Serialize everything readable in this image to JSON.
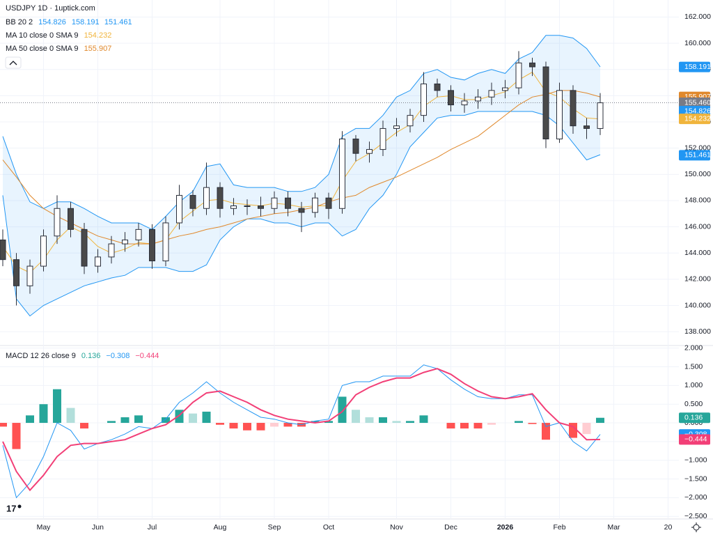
{
  "chart_data": [
    {
      "type": "candlestick",
      "title": "USDJPY 1D · 1uptick.com",
      "categories": [
        null,
        null,
        null,
        "May",
        null,
        null,
        null,
        "Jun",
        null,
        null,
        null,
        "Jul",
        null,
        null,
        null,
        null,
        "Aug",
        null,
        null,
        null,
        "Sep",
        null,
        null,
        null,
        "Oct",
        null,
        null,
        null,
        null,
        "Nov",
        null,
        null,
        null,
        "Dec",
        null,
        null,
        null,
        "2026",
        null,
        null,
        null,
        "Feb",
        null,
        null,
        null,
        "Mar",
        null,
        null,
        null,
        "20"
      ],
      "open": [
        145,
        143.5,
        141.5,
        143,
        145.3,
        147.4,
        145.8,
        143,
        143.7,
        144.7,
        145,
        145.8,
        143.4,
        146.3,
        148.4,
        147.4,
        149,
        147.4,
        147.6,
        147.6,
        147.4,
        148.2,
        147.4,
        147.1,
        148.2,
        147.4,
        152.7,
        151.6,
        151.9,
        153.5,
        153.7,
        154.5,
        156.9,
        156.4,
        155.3,
        155.6,
        155.9,
        156.4,
        156.6,
        158.5,
        158.2,
        152.7,
        156.4,
        153.7,
        153.5,
        null,
        null,
        null,
        null,
        null
      ],
      "high": [
        145.8,
        144,
        143.5,
        145.8,
        148.4,
        147.9,
        146.3,
        144.3,
        145.3,
        145.6,
        146.3,
        146.2,
        146.8,
        149.2,
        148.8,
        150.9,
        149.4,
        148.2,
        148.1,
        148.3,
        148.7,
        148.7,
        147.9,
        148.6,
        148.6,
        153.3,
        153,
        152.5,
        154.1,
        154.3,
        155,
        157.8,
        157.3,
        156.8,
        156.2,
        156.5,
        157,
        157.2,
        159.4,
        158.9,
        158.6,
        157,
        156.8,
        154.3,
        156.2,
        null,
        null,
        null,
        null,
        null
      ],
      "low": [
        143,
        140,
        140.9,
        142.6,
        144.7,
        145.2,
        142.4,
        142.5,
        143.2,
        144.1,
        144.5,
        142.8,
        143,
        145.8,
        146.8,
        146.9,
        146.7,
        146.9,
        146.9,
        146.8,
        147,
        146.8,
        145.6,
        146.7,
        146.6,
        147,
        151,
        150.9,
        151.4,
        152.9,
        153.2,
        154,
        155.9,
        154.8,
        154.7,
        155,
        155.3,
        155.8,
        156.1,
        157.5,
        152,
        152.4,
        153.1,
        152.7,
        153,
        null,
        null,
        null,
        null,
        null
      ],
      "close": [
        143.5,
        141.5,
        143,
        145.3,
        147.4,
        145.8,
        143,
        143.7,
        144.7,
        145,
        145.8,
        143.4,
        146.3,
        148.4,
        147.4,
        149,
        147.4,
        147.6,
        147.6,
        147.4,
        148.2,
        147.4,
        147.1,
        148.2,
        147.4,
        152.7,
        151.6,
        151.9,
        153.5,
        153.7,
        154.5,
        156.9,
        156.4,
        155.3,
        155.6,
        155.9,
        156.4,
        156.6,
        158.5,
        158.2,
        152.7,
        156.4,
        153.7,
        153.5,
        155.46,
        null,
        null,
        null,
        null,
        null
      ],
      "up_color": "#ffffff",
      "down_color": "#4a4a4a",
      "wick_color": "#2a2e39",
      "bands": {
        "name": "BB 20 2",
        "color": "#2196f3",
        "legend_values": [
          "154.826",
          "158.191",
          "151.461"
        ],
        "upper": [
          152.9,
          150,
          147.9,
          147.4,
          147.9,
          147.9,
          147.4,
          146.8,
          146.3,
          146.3,
          146.3,
          145.8,
          146.8,
          147.9,
          148.7,
          150.6,
          150.8,
          149.2,
          149,
          149,
          149,
          148.7,
          148.7,
          149,
          150,
          152.9,
          153.5,
          153.5,
          154.5,
          155.9,
          156.4,
          157.7,
          158,
          157.4,
          157.2,
          157.7,
          158,
          157.7,
          158.8,
          159.3,
          160.6,
          160.6,
          160.4,
          159.6,
          158.2,
          null,
          null,
          null,
          null,
          null
        ],
        "lower": [
          148.4,
          140.5,
          139.2,
          140,
          140.5,
          141,
          141.5,
          141.8,
          142.1,
          142.3,
          142.9,
          142.9,
          142.9,
          142.6,
          142.6,
          143.1,
          145,
          146,
          146.6,
          146.6,
          146.3,
          146.3,
          146,
          146.3,
          146.3,
          145.3,
          145.8,
          147.4,
          148.4,
          150,
          152.1,
          153.2,
          154.3,
          154.5,
          154.5,
          154.8,
          154.8,
          154.8,
          154.8,
          154.8,
          154.5,
          153.7,
          152.4,
          151.1,
          151.5,
          null,
          null,
          null,
          null,
          null
        ]
      },
      "series": [
        {
          "name": "MA 10 close 0 SMA 9",
          "color": "#f0b43c",
          "legend_values": [
            "154.232"
          ],
          "values": [
            144.5,
            143,
            142.5,
            143.5,
            145,
            146,
            145.5,
            144.5,
            144,
            144.3,
            144.8,
            144.7,
            145,
            146.4,
            147.2,
            148,
            148.1,
            147.8,
            147.7,
            147.6,
            147.8,
            147.7,
            147.5,
            147.6,
            147.6,
            149.5,
            151,
            151.6,
            152.4,
            153.2,
            153.8,
            155.2,
            155.9,
            156,
            155.7,
            155.7,
            156,
            156.3,
            157.2,
            157.8,
            156.3,
            155.9,
            155,
            154.3,
            154.232,
            null,
            null,
            null,
            null,
            null
          ]
        },
        {
          "name": "MA 50 close 0 SMA 9",
          "color": "#e0882b",
          "legend_values": [
            "155.907"
          ],
          "values": [
            151.1,
            149.8,
            148.4,
            147.4,
            146.8,
            146.3,
            145.8,
            145.3,
            145,
            144.7,
            144.7,
            144.7,
            145,
            145.3,
            145.5,
            145.8,
            146,
            146.3,
            146.6,
            146.8,
            147,
            147.1,
            147.3,
            147.5,
            147.9,
            148.2,
            148.4,
            149,
            149.4,
            149.8,
            150.3,
            150.8,
            151.3,
            151.9,
            152.4,
            152.9,
            153.7,
            154.5,
            155.3,
            155.9,
            156.1,
            156.4,
            156.4,
            156.2,
            155.907,
            null,
            null,
            null,
            null,
            null
          ]
        }
      ],
      "last_price": 155.46,
      "ylim": [
        137,
        163.3
      ],
      "yticks": [
        {
          "value": 138,
          "label": "138.000"
        },
        {
          "value": 140,
          "label": "140.000"
        },
        {
          "value": 142,
          "label": "142.000"
        },
        {
          "value": 144,
          "label": "144.000"
        },
        {
          "value": 146,
          "label": "146.000"
        },
        {
          "value": 148,
          "label": "148.000"
        },
        {
          "value": 150,
          "label": "150.000"
        },
        {
          "value": 152,
          "label": "152.000"
        },
        {
          "value": 154,
          "label": "154.000"
        },
        {
          "value": 156,
          "label": "156.000"
        },
        {
          "value": 158,
          "label": "158.000"
        },
        {
          "value": 160,
          "label": "160.000"
        },
        {
          "value": 162,
          "label": "162.000"
        }
      ],
      "price_tags": [
        {
          "value": 158.191,
          "label": "158.191",
          "color": "#2196f3"
        },
        {
          "value": 155.907,
          "label": "155.907",
          "color": "#e0882b"
        },
        {
          "value": 155.46,
          "label": "155.460",
          "color": "#787b86"
        },
        {
          "value": 154.826,
          "label": "154.826",
          "color": "#2196f3"
        },
        {
          "value": 154.232,
          "label": "154.232",
          "color": "#f0b43c"
        },
        {
          "value": 151.461,
          "label": "151.461",
          "color": "#2196f3"
        }
      ],
      "grid": true
    },
    {
      "type": "macd",
      "title": "MACD 12 26 close 9",
      "legend_values": [
        "0.136",
        "−0.308",
        "−0.444"
      ],
      "histogram": [
        -0.1,
        -0.7,
        0.2,
        0.5,
        0.9,
        0.4,
        -0.15,
        0,
        0.05,
        0.15,
        0.2,
        0,
        0.15,
        0.35,
        0.25,
        0.3,
        -0.05,
        -0.15,
        -0.2,
        -0.2,
        -0.1,
        -0.1,
        -0.1,
        0.05,
        0.05,
        0.7,
        0.35,
        0.15,
        0.15,
        0.05,
        0.05,
        0.2,
        0,
        -0.15,
        -0.15,
        -0.15,
        -0.05,
        0,
        0.05,
        -0.03,
        -0.45,
        0,
        -0.4,
        -0.3,
        0.136,
        null,
        null,
        null,
        null,
        null
      ],
      "colors": {
        "up_rising": "#26a69a",
        "up_falling": "#b2dfdb",
        "down_falling": "#ff5252",
        "down_rising": "#ffcdd2"
      },
      "macd": {
        "color": "#2196f3",
        "values": [
          -0.6,
          -2,
          -1.6,
          -0.9,
          0,
          -0.2,
          -0.7,
          -0.55,
          -0.45,
          -0.3,
          -0.1,
          -0.15,
          0.1,
          0.55,
          0.8,
          1.1,
          0.8,
          0.55,
          0.35,
          0.15,
          0.1,
          0,
          -0.05,
          0.05,
          0.1,
          1,
          1.1,
          1.1,
          1.25,
          1.25,
          1.25,
          1.55,
          1.45,
          1.15,
          0.9,
          0.7,
          0.65,
          0.65,
          0.75,
          0.75,
          -0.1,
          0,
          -0.5,
          -0.75,
          -0.308,
          null,
          null,
          null,
          null,
          null
        ]
      },
      "signal": {
        "color": "#f23f77",
        "values": [
          -0.5,
          -1.3,
          -1.8,
          -1.4,
          -0.9,
          -0.6,
          -0.55,
          -0.55,
          -0.5,
          -0.45,
          -0.3,
          -0.15,
          -0.05,
          0.2,
          0.55,
          0.8,
          0.85,
          0.7,
          0.55,
          0.35,
          0.2,
          0.1,
          0.05,
          0,
          0.05,
          0.3,
          0.75,
          0.95,
          1.1,
          1.2,
          1.2,
          1.35,
          1.45,
          1.3,
          1.05,
          0.85,
          0.7,
          0.65,
          0.7,
          0.78,
          0.35,
          0,
          -0.1,
          -0.45,
          -0.444,
          null,
          null,
          null,
          null,
          null
        ]
      },
      "ylim": [
        -2.57,
        2.05
      ],
      "yticks": [
        {
          "value": 2,
          "label": "2.000"
        },
        {
          "value": 1.5,
          "label": "1.500"
        },
        {
          "value": 1,
          "label": "1.000"
        },
        {
          "value": 0.5,
          "label": "0.500"
        },
        {
          "value": 0,
          "label": "0.000"
        },
        {
          "value": -0.5,
          "label": "−0.500"
        },
        {
          "value": -1,
          "label": "−1.000"
        },
        {
          "value": -1.5,
          "label": "−1.500"
        },
        {
          "value": -2,
          "label": "−2.000"
        },
        {
          "value": -2.5,
          "label": "−2.500"
        }
      ],
      "tags": [
        {
          "value": 0.136,
          "label": "0.136",
          "color": "#26a69a"
        },
        {
          "value": -0.308,
          "label": "−0.308",
          "color": "#2196f3"
        },
        {
          "value": -0.444,
          "label": "−0.444",
          "color": "#f23f77"
        }
      ]
    }
  ]
}
